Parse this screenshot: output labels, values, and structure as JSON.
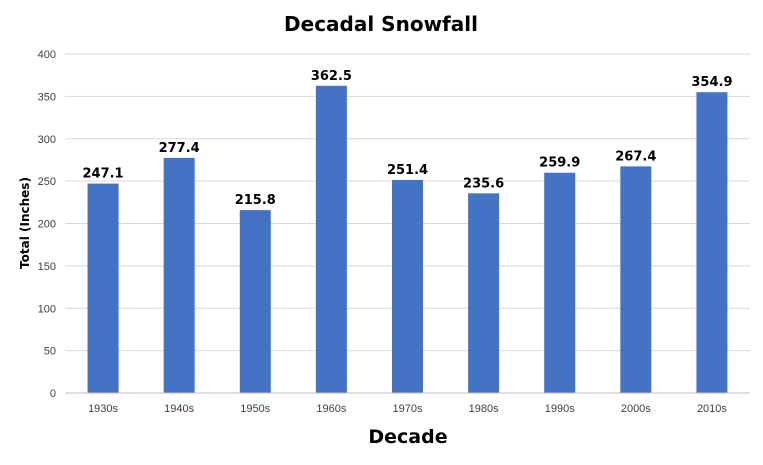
{
  "chart_data": {
    "type": "bar",
    "title": "Decadal Snowfall",
    "xlabel": "Decade",
    "ylabel": "Total (Inches)",
    "categories": [
      "1930s",
      "1940s",
      "1950s",
      "1960s",
      "1970s",
      "1980s",
      "1990s",
      "2000s",
      "2010s"
    ],
    "values": [
      247.1,
      277.4,
      215.8,
      362.5,
      251.4,
      235.6,
      259.9,
      267.4,
      354.9
    ],
    "data_labels": [
      "247.1",
      "277.4",
      "215.8",
      "362.5",
      "251.4",
      "235.6",
      "259.9",
      "267.4",
      "354.9"
    ],
    "ylim": [
      0,
      400
    ],
    "yticks": [
      0,
      50,
      100,
      150,
      200,
      250,
      300,
      350,
      400
    ],
    "ytick_labels": [
      "0",
      "50",
      "100",
      "150",
      "200",
      "250",
      "300",
      "350",
      "400"
    ],
    "grid": true,
    "bar_color": "#4472c4"
  }
}
